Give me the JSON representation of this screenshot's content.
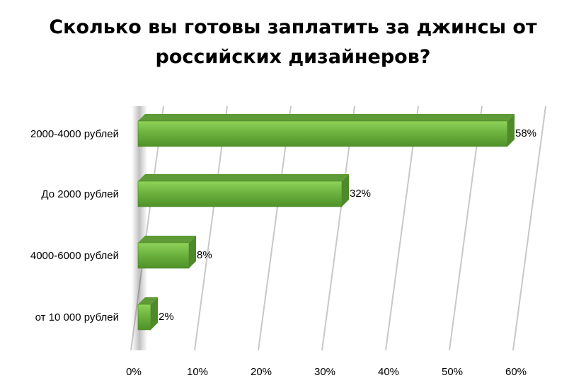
{
  "chart_data": {
    "type": "bar",
    "orientation": "horizontal",
    "title_lines": [
      "Сколько вы готовы заплатить за джинсы от",
      "российских дизайнеров?"
    ],
    "categories": [
      "2000-4000 рублей",
      "До 2000 рублей",
      "4000-6000 рублей",
      "от 10 000 рублей"
    ],
    "values": [
      58,
      32,
      8,
      2
    ],
    "data_labels": [
      "58%",
      "32%",
      "8%",
      "2%"
    ],
    "x_ticks": [
      0,
      10,
      20,
      30,
      40,
      50,
      60
    ],
    "x_tick_labels": [
      "0%",
      "10%",
      "20%",
      "30%",
      "40%",
      "50%",
      "60%"
    ],
    "xlim": [
      0,
      60
    ],
    "grid": true,
    "legend": "none",
    "style": "3d",
    "colors": {
      "bar": "#6cb33f",
      "bar_side": "#4e8a2a",
      "bar_top": "#5e9a35",
      "grid": "#c8c8c8"
    }
  }
}
